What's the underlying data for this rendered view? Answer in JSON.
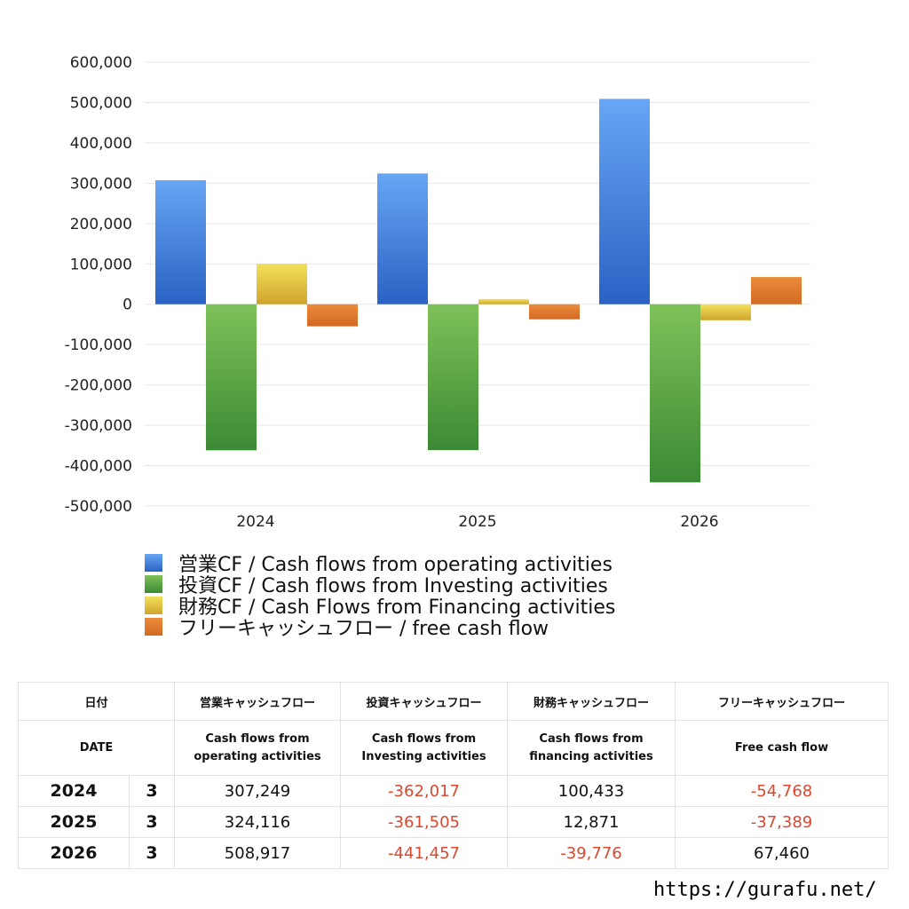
{
  "chart_data": {
    "type": "bar",
    "categories": [
      "2024",
      "2025",
      "2026"
    ],
    "series": [
      {
        "name": "営業CF / Cash flows from operating activities",
        "values": [
          307249,
          324116,
          508917
        ],
        "color_top": "#66a6f4",
        "color_bottom": "#2a62c4"
      },
      {
        "name": "投資CF / Cash flows from Investing activities",
        "values": [
          -362017,
          -361505,
          -441457
        ],
        "color_top": "#7fc159",
        "color_bottom": "#3b8a34"
      },
      {
        "name": "財務CF / Cash Flows from Financing activities",
        "values": [
          100433,
          12871,
          -39776
        ],
        "color_top": "#f3e05a",
        "color_bottom": "#cfa52d"
      },
      {
        "name": "フリーキャッシュフロー / free cash flow",
        "values": [
          -54768,
          -37389,
          67460
        ],
        "color_top": "#ec8b3c",
        "color_bottom": "#d26a24"
      }
    ],
    "ylim": [
      -500000,
      600000
    ],
    "yticks": [
      "600,000",
      "500,000",
      "400,000",
      "300,000",
      "200,000",
      "100,000",
      "0",
      "-100,000",
      "-200,000",
      "-300,000",
      "-400,000",
      "-500,000"
    ],
    "ytick_values": [
      600000,
      500000,
      400000,
      300000,
      200000,
      100000,
      0,
      -100000,
      -200000,
      -300000,
      -400000,
      -500000
    ],
    "grid": true,
    "legend": "bottom-left"
  },
  "table": {
    "header_jp": {
      "date": "日付",
      "operating": "営業キャッシュフロー",
      "investing": "投資キャッシュフロー",
      "financing": "財務キャッシュフロー",
      "free": "フリーキャッシュフロー"
    },
    "header_en": {
      "date": "DATE",
      "operating_1": "Cash flows from",
      "operating_2": "operating activities",
      "investing_1": "Cash flows from",
      "investing_2": "Investing activities",
      "financing_1": "Cash flows from",
      "financing_2": "financing activities",
      "free": "Free cash flow"
    },
    "rows": [
      {
        "year": "2024",
        "month": "3",
        "operating": "307,249",
        "investing": "-362,017",
        "financing": "100,433",
        "free": "-54,768"
      },
      {
        "year": "2025",
        "month": "3",
        "operating": "324,116",
        "investing": "-361,505",
        "financing": "12,871",
        "free": "-37,389"
      },
      {
        "year": "2026",
        "month": "3",
        "operating": "508,917",
        "investing": "-441,457",
        "financing": "-39,776",
        "free": "67,460"
      }
    ]
  },
  "footer": {
    "url": "https://gurafu.net/"
  }
}
